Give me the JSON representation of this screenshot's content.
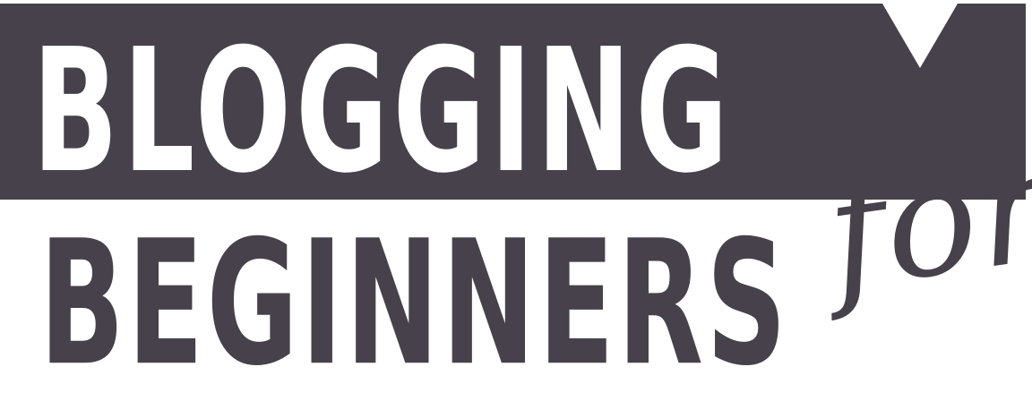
{
  "logo": {
    "top_word": "BLOGGING",
    "bottom_word": "BEGINNERS",
    "script_word": "for"
  },
  "colors": {
    "banner": "#47414b",
    "top_text": "#ffffff",
    "bottom_text": "#47414b",
    "script_text": "#47414b",
    "background": "#ffffff"
  }
}
